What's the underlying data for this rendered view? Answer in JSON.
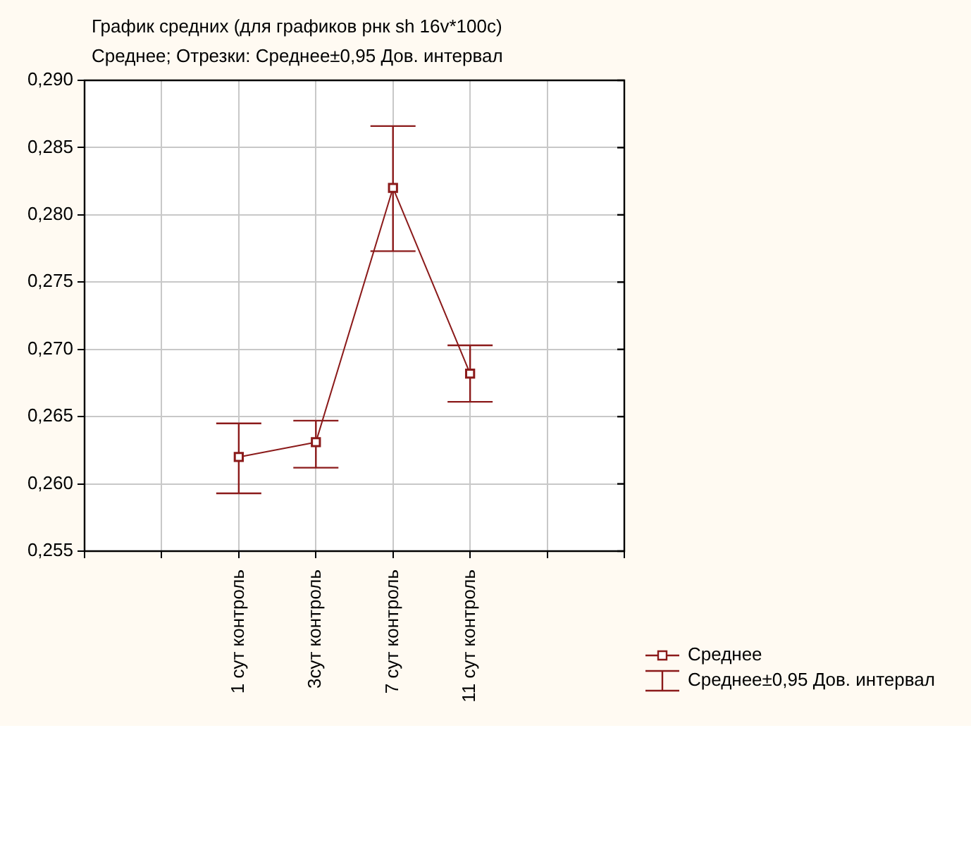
{
  "chart_data": {
    "type": "line",
    "title": "График средних (для графиков рнк sh 16v*100c)",
    "subtitle": "Среднее; Отрезки: Среднее±0,95 Дов. интервал",
    "categories": [
      null,
      null,
      "1 сут контроль",
      "3сут контроль",
      "7 сут контроль",
      "11 сут контроль",
      null,
      null
    ],
    "series": [
      {
        "name": "Среднее",
        "color": "#8b1a1a",
        "values": [
          null,
          null,
          0.262,
          0.2631,
          0.282,
          0.2682,
          null,
          null
        ],
        "errors": [
          null,
          null,
          [
            0.2593,
            0.2645
          ],
          [
            0.2612,
            0.2647
          ],
          [
            0.2773,
            0.2866
          ],
          [
            0.2661,
            0.2703
          ],
          null,
          null
        ]
      }
    ],
    "ylim": [
      0.255,
      0.29
    ],
    "yticks": [
      {
        "value": 0.255,
        "label": "0,255"
      },
      {
        "value": 0.26,
        "label": "0,260"
      },
      {
        "value": 0.265,
        "label": "0,265"
      },
      {
        "value": 0.27,
        "label": "0,270"
      },
      {
        "value": 0.275,
        "label": "0,275"
      },
      {
        "value": 0.28,
        "label": "0,280"
      },
      {
        "value": 0.285,
        "label": "0,285"
      },
      {
        "value": 0.29,
        "label": "0,290"
      }
    ],
    "annotations": [
      "Среднее±0,95 Дов. интервал"
    ],
    "grid": true,
    "legend": "bottom right",
    "marker": "square",
    "line_style": "solid"
  }
}
